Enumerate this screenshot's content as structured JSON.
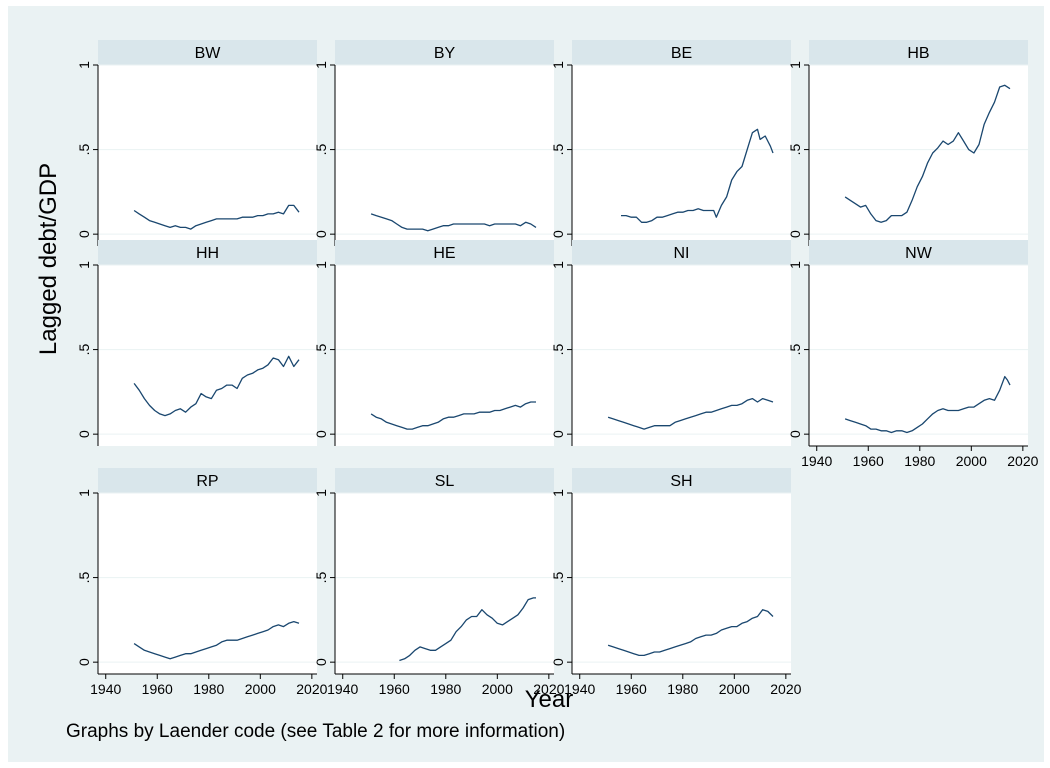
{
  "colors": {
    "background": "#eaf2f3",
    "plot_region": "#ffffff",
    "panel_header": "#d9e6eb",
    "line": "#1a476f",
    "grid": "#eaf2f3",
    "axis": "#000000"
  },
  "chart_data": {
    "type": "line",
    "layout": "small-multiples",
    "ylabel": "Lagged debt/GDP",
    "xlabel": "Year",
    "note": "Graphs by Laender code (see Table 2 for more information)",
    "xlim": [
      1937,
      2022
    ],
    "ylim": [
      -0.07,
      1.0
    ],
    "x_ticks": [
      1940,
      1960,
      1980,
      2000,
      2020
    ],
    "y_ticks": [
      0,
      0.5,
      1
    ],
    "y_tick_labels": [
      "0",
      ".5",
      "1"
    ],
    "grid": true,
    "panels": [
      {
        "name": "BW",
        "x": [
          1951,
          1953,
          1955,
          1957,
          1959,
          1961,
          1963,
          1965,
          1967,
          1969,
          1971,
          1973,
          1975,
          1977,
          1979,
          1981,
          1983,
          1985,
          1987,
          1989,
          1991,
          1993,
          1995,
          1997,
          1999,
          2001,
          2003,
          2005,
          2007,
          2009,
          2011,
          2013,
          2015
        ],
        "y": [
          0.14,
          0.12,
          0.1,
          0.08,
          0.07,
          0.06,
          0.05,
          0.04,
          0.05,
          0.04,
          0.04,
          0.03,
          0.05,
          0.06,
          0.07,
          0.08,
          0.09,
          0.09,
          0.09,
          0.09,
          0.09,
          0.1,
          0.1,
          0.1,
          0.11,
          0.11,
          0.12,
          0.12,
          0.13,
          0.12,
          0.17,
          0.17,
          0.13
        ]
      },
      {
        "name": "BY",
        "x": [
          1951,
          1953,
          1955,
          1957,
          1959,
          1961,
          1963,
          1965,
          1967,
          1969,
          1971,
          1973,
          1975,
          1977,
          1979,
          1981,
          1983,
          1985,
          1987,
          1989,
          1991,
          1993,
          1995,
          1997,
          1999,
          2001,
          2003,
          2005,
          2007,
          2009,
          2011,
          2013,
          2015
        ],
        "y": [
          0.12,
          0.11,
          0.1,
          0.09,
          0.08,
          0.06,
          0.04,
          0.03,
          0.03,
          0.03,
          0.03,
          0.02,
          0.03,
          0.04,
          0.05,
          0.05,
          0.06,
          0.06,
          0.06,
          0.06,
          0.06,
          0.06,
          0.06,
          0.05,
          0.06,
          0.06,
          0.06,
          0.06,
          0.06,
          0.05,
          0.07,
          0.06,
          0.04
        ]
      },
      {
        "name": "BE",
        "x": [
          1956,
          1958,
          1960,
          1962,
          1964,
          1966,
          1968,
          1970,
          1972,
          1974,
          1976,
          1978,
          1980,
          1982,
          1984,
          1986,
          1988,
          1990,
          1992,
          1993,
          1995,
          1997,
          1999,
          2001,
          2003,
          2004,
          2006,
          2007,
          2009,
          2010,
          2012,
          2014,
          2015
        ],
        "y": [
          0.11,
          0.11,
          0.1,
          0.1,
          0.07,
          0.07,
          0.08,
          0.1,
          0.1,
          0.11,
          0.12,
          0.13,
          0.13,
          0.14,
          0.14,
          0.15,
          0.14,
          0.14,
          0.14,
          0.1,
          0.17,
          0.22,
          0.32,
          0.37,
          0.4,
          0.45,
          0.55,
          0.6,
          0.62,
          0.56,
          0.58,
          0.52,
          0.48
        ]
      },
      {
        "name": "HB",
        "x": [
          1951,
          1953,
          1955,
          1957,
          1959,
          1961,
          1963,
          1965,
          1967,
          1969,
          1971,
          1973,
          1975,
          1977,
          1979,
          1981,
          1983,
          1985,
          1987,
          1989,
          1991,
          1993,
          1995,
          1997,
          1999,
          2001,
          2003,
          2005,
          2007,
          2009,
          2011,
          2013,
          2015
        ],
        "y": [
          0.22,
          0.2,
          0.18,
          0.16,
          0.17,
          0.12,
          0.08,
          0.07,
          0.08,
          0.11,
          0.11,
          0.11,
          0.13,
          0.2,
          0.28,
          0.34,
          0.42,
          0.48,
          0.51,
          0.55,
          0.53,
          0.55,
          0.6,
          0.55,
          0.5,
          0.48,
          0.53,
          0.65,
          0.72,
          0.78,
          0.87,
          0.88,
          0.86
        ]
      },
      {
        "name": "HH",
        "x": [
          1951,
          1953,
          1955,
          1957,
          1959,
          1961,
          1963,
          1965,
          1967,
          1969,
          1971,
          1973,
          1975,
          1977,
          1979,
          1981,
          1983,
          1985,
          1987,
          1989,
          1991,
          1993,
          1995,
          1997,
          1999,
          2001,
          2003,
          2005,
          2007,
          2009,
          2011,
          2013,
          2015
        ],
        "y": [
          0.3,
          0.26,
          0.21,
          0.17,
          0.14,
          0.12,
          0.11,
          0.12,
          0.14,
          0.15,
          0.13,
          0.16,
          0.18,
          0.24,
          0.22,
          0.21,
          0.26,
          0.27,
          0.29,
          0.29,
          0.27,
          0.33,
          0.35,
          0.36,
          0.38,
          0.39,
          0.41,
          0.45,
          0.44,
          0.4,
          0.46,
          0.4,
          0.44
        ]
      },
      {
        "name": "HE",
        "x": [
          1951,
          1953,
          1955,
          1957,
          1959,
          1961,
          1963,
          1965,
          1967,
          1969,
          1971,
          1973,
          1975,
          1977,
          1979,
          1981,
          1983,
          1985,
          1987,
          1989,
          1991,
          1993,
          1995,
          1997,
          1999,
          2001,
          2003,
          2005,
          2007,
          2009,
          2011,
          2013,
          2015
        ],
        "y": [
          0.12,
          0.1,
          0.09,
          0.07,
          0.06,
          0.05,
          0.04,
          0.03,
          0.03,
          0.04,
          0.05,
          0.05,
          0.06,
          0.07,
          0.09,
          0.1,
          0.1,
          0.11,
          0.12,
          0.12,
          0.12,
          0.13,
          0.13,
          0.13,
          0.14,
          0.14,
          0.15,
          0.16,
          0.17,
          0.16,
          0.18,
          0.19,
          0.19
        ]
      },
      {
        "name": "NI",
        "x": [
          1951,
          1953,
          1955,
          1957,
          1959,
          1961,
          1963,
          1965,
          1967,
          1969,
          1971,
          1973,
          1975,
          1977,
          1979,
          1981,
          1983,
          1985,
          1987,
          1989,
          1991,
          1993,
          1995,
          1997,
          1999,
          2001,
          2003,
          2005,
          2007,
          2009,
          2011,
          2013,
          2015
        ],
        "y": [
          0.1,
          0.09,
          0.08,
          0.07,
          0.06,
          0.05,
          0.04,
          0.03,
          0.04,
          0.05,
          0.05,
          0.05,
          0.05,
          0.07,
          0.08,
          0.09,
          0.1,
          0.11,
          0.12,
          0.13,
          0.13,
          0.14,
          0.15,
          0.16,
          0.17,
          0.17,
          0.18,
          0.2,
          0.21,
          0.19,
          0.21,
          0.2,
          0.19
        ]
      },
      {
        "name": "NW",
        "x": [
          1951,
          1953,
          1955,
          1957,
          1959,
          1961,
          1963,
          1965,
          1967,
          1969,
          1971,
          1973,
          1975,
          1977,
          1979,
          1981,
          1983,
          1985,
          1987,
          1989,
          1991,
          1993,
          1995,
          1997,
          1999,
          2001,
          2003,
          2005,
          2007,
          2009,
          2011,
          2013,
          2014,
          2015
        ],
        "y": [
          0.09,
          0.08,
          0.07,
          0.06,
          0.05,
          0.03,
          0.03,
          0.02,
          0.02,
          0.01,
          0.02,
          0.02,
          0.01,
          0.02,
          0.04,
          0.06,
          0.09,
          0.12,
          0.14,
          0.15,
          0.14,
          0.14,
          0.14,
          0.15,
          0.16,
          0.16,
          0.18,
          0.2,
          0.21,
          0.2,
          0.26,
          0.34,
          0.32,
          0.29
        ]
      },
      {
        "name": "RP",
        "x": [
          1951,
          1953,
          1955,
          1957,
          1959,
          1961,
          1963,
          1965,
          1967,
          1969,
          1971,
          1973,
          1975,
          1977,
          1979,
          1981,
          1983,
          1985,
          1987,
          1989,
          1991,
          1993,
          1995,
          1997,
          1999,
          2001,
          2003,
          2005,
          2007,
          2009,
          2011,
          2013,
          2015
        ],
        "y": [
          0.11,
          0.09,
          0.07,
          0.06,
          0.05,
          0.04,
          0.03,
          0.02,
          0.03,
          0.04,
          0.05,
          0.05,
          0.06,
          0.07,
          0.08,
          0.09,
          0.1,
          0.12,
          0.13,
          0.13,
          0.13,
          0.14,
          0.15,
          0.16,
          0.17,
          0.18,
          0.19,
          0.21,
          0.22,
          0.21,
          0.23,
          0.24,
          0.23
        ]
      },
      {
        "name": "SL",
        "x": [
          1962,
          1964,
          1966,
          1968,
          1970,
          1972,
          1974,
          1976,
          1978,
          1980,
          1982,
          1984,
          1986,
          1988,
          1990,
          1992,
          1994,
          1996,
          1998,
          2000,
          2002,
          2004,
          2006,
          2008,
          2010,
          2012,
          2014,
          2015
        ],
        "y": [
          0.01,
          0.02,
          0.04,
          0.07,
          0.09,
          0.08,
          0.07,
          0.07,
          0.09,
          0.11,
          0.13,
          0.18,
          0.21,
          0.25,
          0.27,
          0.27,
          0.31,
          0.28,
          0.26,
          0.23,
          0.22,
          0.24,
          0.26,
          0.28,
          0.32,
          0.37,
          0.38,
          0.38
        ]
      },
      {
        "name": "SH",
        "x": [
          1951,
          1953,
          1955,
          1957,
          1959,
          1961,
          1963,
          1965,
          1967,
          1969,
          1971,
          1973,
          1975,
          1977,
          1979,
          1981,
          1983,
          1985,
          1987,
          1989,
          1991,
          1993,
          1995,
          1997,
          1999,
          2001,
          2003,
          2005,
          2007,
          2009,
          2011,
          2013,
          2015
        ],
        "y": [
          0.1,
          0.09,
          0.08,
          0.07,
          0.06,
          0.05,
          0.04,
          0.04,
          0.05,
          0.06,
          0.06,
          0.07,
          0.08,
          0.09,
          0.1,
          0.11,
          0.12,
          0.14,
          0.15,
          0.16,
          0.16,
          0.17,
          0.19,
          0.2,
          0.21,
          0.21,
          0.23,
          0.24,
          0.26,
          0.27,
          0.31,
          0.3,
          0.27
        ]
      }
    ]
  }
}
